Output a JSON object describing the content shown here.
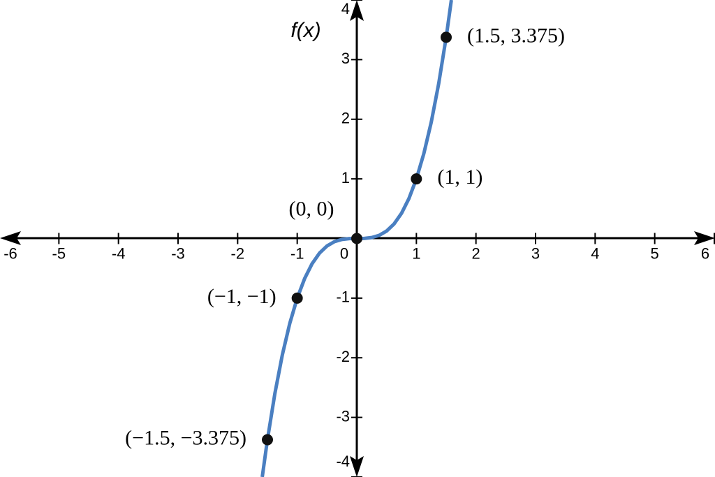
{
  "chart_data": {
    "type": "line",
    "y_label": "f(x)",
    "xlim": [
      -6,
      6
    ],
    "ylim": [
      -4,
      4
    ],
    "xticks": [
      -6,
      -5,
      -4,
      -3,
      -2,
      -1,
      0,
      1,
      2,
      3,
      4,
      5,
      6
    ],
    "yticks": [
      -4,
      -3,
      -2,
      -1,
      1,
      2,
      3,
      4
    ],
    "series": [
      {
        "color": "#4a7fc1",
        "x": [
          -1.587,
          -1.5,
          -1.375,
          -1.25,
          -1.125,
          -1,
          -0.875,
          -0.75,
          -0.625,
          -0.5,
          -0.375,
          -0.25,
          -0.125,
          0,
          0.125,
          0.25,
          0.375,
          0.5,
          0.625,
          0.75,
          0.875,
          1,
          1.125,
          1.25,
          1.375,
          1.5,
          1.587
        ],
        "values": [
          -4,
          -3.375,
          -2.6,
          -1.953,
          -1.424,
          -1,
          -0.67,
          -0.422,
          -0.244,
          -0.125,
          -0.053,
          -0.016,
          -0.002,
          0,
          0.002,
          0.016,
          0.053,
          0.125,
          0.244,
          0.422,
          0.67,
          1,
          1.424,
          1.953,
          2.6,
          3.375,
          4
        ]
      }
    ],
    "points": {
      "color": "#111111",
      "x": [
        1.5,
        1,
        0,
        -1,
        -1.5
      ],
      "values": [
        3.375,
        1,
        0,
        -1,
        -3.375
      ],
      "labels": [
        "(1.5, 3.375)",
        "(1, 1)",
        "(0, 0)",
        "(−1, −1)",
        "(−1.5, −3.375)"
      ]
    }
  }
}
